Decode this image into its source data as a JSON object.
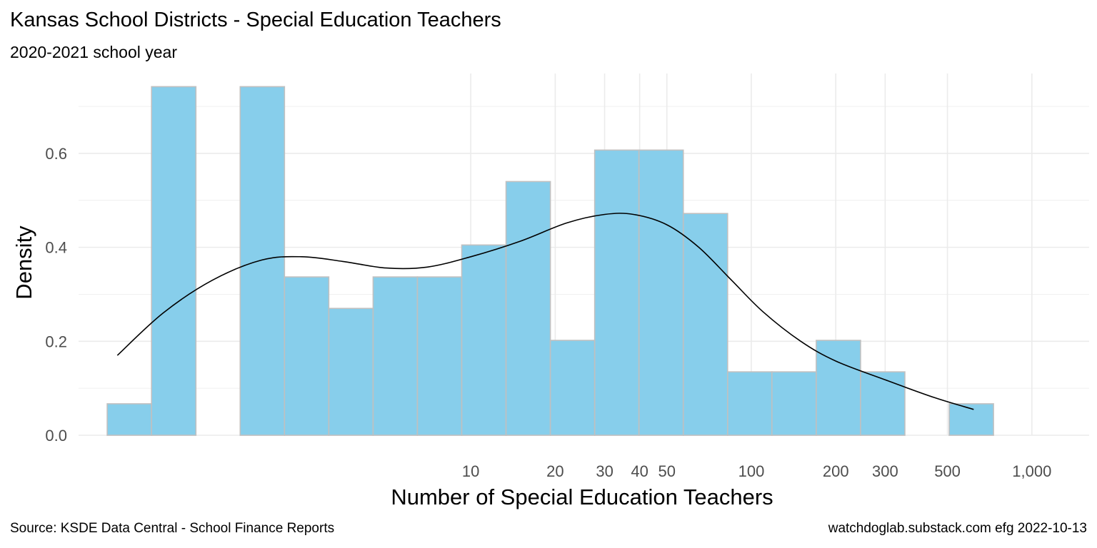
{
  "chart": {
    "title": "Kansas School Districts - Special Education Teachers",
    "subtitle": "2020-2021 school year",
    "caption_left": "Source:  KSDE Data Central - School Finance Reports",
    "caption_right": "watchdoglab.substack.com  efg 2022-10-13"
  },
  "chart_data": {
    "type": "bar",
    "title": "Kansas School Districts - Special Education Teachers",
    "subtitle": "2020-2021 school year",
    "xlabel": "Number of Special Education Teachers",
    "ylabel": "Density",
    "x_scale": "log10",
    "x_ticks": [
      10,
      20,
      30,
      40,
      50,
      100,
      200,
      300,
      500,
      1000
    ],
    "x_tick_labels": [
      "10",
      "20",
      "30",
      "40",
      "50",
      "100",
      "200",
      "300",
      "500",
      "1,000"
    ],
    "y_ticks": [
      0.0,
      0.2,
      0.4,
      0.6
    ],
    "y_tick_labels": [
      "0.0",
      "0.2",
      "0.4",
      "0.6"
    ],
    "xlim": [
      0.4,
      1600
    ],
    "ylim": [
      0,
      0.77
    ],
    "bin_width_log10": 0.158,
    "bins": [
      {
        "x0": 0.506,
        "x1": 0.728,
        "density": 0.067
      },
      {
        "x0": 0.728,
        "x1": 1.048,
        "density": 0.742
      },
      {
        "x0": 1.048,
        "x1": 1.507,
        "density": 0.0
      },
      {
        "x0": 1.507,
        "x1": 2.168,
        "density": 0.742
      },
      {
        "x0": 2.168,
        "x1": 3.119,
        "density": 0.337
      },
      {
        "x0": 3.119,
        "x1": 4.487,
        "density": 0.27
      },
      {
        "x0": 4.487,
        "x1": 6.455,
        "density": 0.337
      },
      {
        "x0": 6.455,
        "x1": 9.286,
        "density": 0.337
      },
      {
        "x0": 9.286,
        "x1": 13.36,
        "density": 0.405
      },
      {
        "x0": 13.36,
        "x1": 19.22,
        "density": 0.54
      },
      {
        "x0": 19.22,
        "x1": 27.65,
        "density": 0.202
      },
      {
        "x0": 27.65,
        "x1": 39.77,
        "density": 0.607
      },
      {
        "x0": 39.77,
        "x1": 57.22,
        "density": 0.607
      },
      {
        "x0": 57.22,
        "x1": 82.32,
        "density": 0.472
      },
      {
        "x0": 82.32,
        "x1": 118.4,
        "density": 0.135
      },
      {
        "x0": 118.4,
        "x1": 170.4,
        "density": 0.135
      },
      {
        "x0": 170.4,
        "x1": 245.1,
        "density": 0.202
      },
      {
        "x0": 245.1,
        "x1": 352.6,
        "density": 0.135
      },
      {
        "x0": 352.6,
        "x1": 507.3,
        "density": 0.0
      },
      {
        "x0": 507.3,
        "x1": 729.8,
        "density": 0.067
      }
    ],
    "density_curve": [
      {
        "x": 0.55,
        "y": 0.17
      },
      {
        "x": 0.8,
        "y": 0.26
      },
      {
        "x": 1.2,
        "y": 0.33
      },
      {
        "x": 1.8,
        "y": 0.373
      },
      {
        "x": 2.5,
        "y": 0.38
      },
      {
        "x": 3.5,
        "y": 0.37
      },
      {
        "x": 5.0,
        "y": 0.356
      },
      {
        "x": 7.0,
        "y": 0.358
      },
      {
        "x": 10,
        "y": 0.38
      },
      {
        "x": 15,
        "y": 0.413
      },
      {
        "x": 22,
        "y": 0.452
      },
      {
        "x": 30,
        "y": 0.47
      },
      {
        "x": 38,
        "y": 0.47
      },
      {
        "x": 50,
        "y": 0.448
      },
      {
        "x": 65,
        "y": 0.4
      },
      {
        "x": 85,
        "y": 0.33
      },
      {
        "x": 110,
        "y": 0.263
      },
      {
        "x": 150,
        "y": 0.2
      },
      {
        "x": 200,
        "y": 0.158
      },
      {
        "x": 300,
        "y": 0.118
      },
      {
        "x": 450,
        "y": 0.08
      },
      {
        "x": 620,
        "y": 0.055
      }
    ],
    "colors": {
      "fill": "#87CEEB",
      "outline": "#c0c0c0",
      "curve": "#000000",
      "grid": "#ebebeb"
    },
    "legend": "none"
  }
}
